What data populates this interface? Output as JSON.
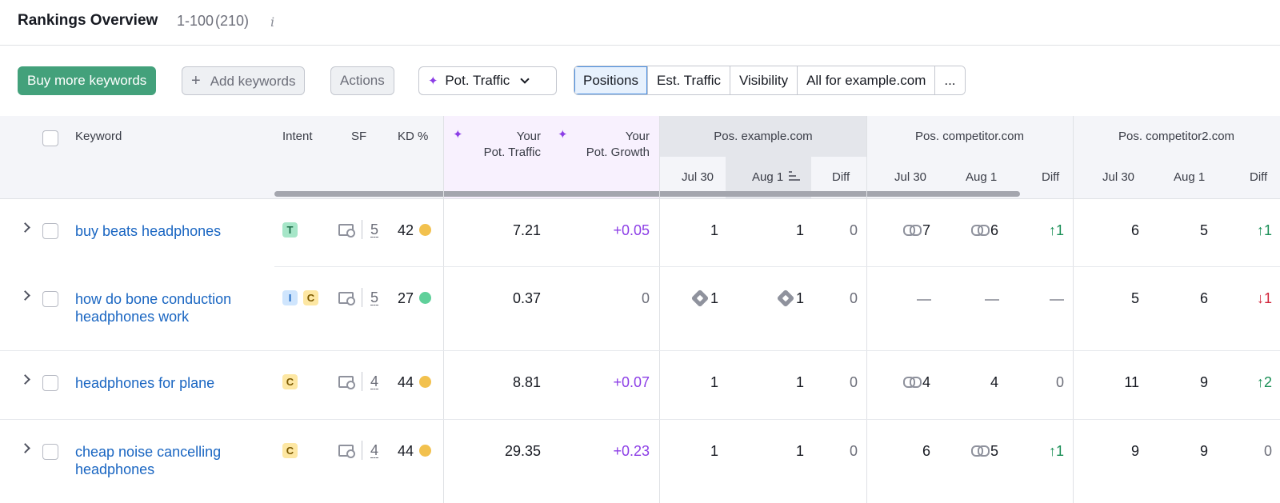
{
  "header": {
    "title": "Rankings Overview",
    "range": "1-100",
    "total": "(210)",
    "info_glyph": "i"
  },
  "toolbar": {
    "buy_label": "Buy more keywords",
    "add_label": "Add keywords",
    "add_glyph": "+",
    "actions_label": "Actions",
    "pot_label": "Pot. Traffic",
    "segments": [
      "Positions",
      "Est. Traffic",
      "Visibility",
      "All for example.com",
      "..."
    ],
    "active_segment": "Positions"
  },
  "table": {
    "columns": {
      "keyword": "Keyword",
      "intent": "Intent",
      "sf": "SF",
      "kd": "KD %",
      "pot_traffic_1": "Your",
      "pot_traffic_2": "Pot. Traffic",
      "pot_growth_1": "Your",
      "pot_growth_2": "Pot. Growth",
      "group_example": "Pos. example.com",
      "group_comp1": "Pos. competitor.com",
      "group_comp2": "Pos. competitor2.com",
      "jul": "Jul 30",
      "aug": "Aug 1",
      "diff": "Diff"
    },
    "rows": [
      {
        "keyword": [
          "buy beats headphones"
        ],
        "intents": [
          "T"
        ],
        "sf": "5",
        "kd": "42",
        "kd_color": "#f2c14e",
        "pot_traffic": "7.21",
        "pot_growth": "+0.05",
        "ex_jul": "1",
        "ex_aug": "1",
        "ex_diff": "0",
        "c1_jul": "7",
        "c1_aug": "6",
        "c1_diff": "↑1",
        "c2_jul": "6",
        "c2_aug": "5",
        "c2_diff": "↑1"
      },
      {
        "keyword": [
          "how do bone conduction",
          "headphones work"
        ],
        "intents": [
          "I",
          "C"
        ],
        "sf": "5",
        "kd": "27",
        "kd_color": "#5fd09a",
        "pot_traffic": "0.37",
        "pot_growth": "0",
        "ex_jul": "1",
        "ex_aug": "1",
        "ex_diff": "0",
        "c1_jul": "",
        "c1_aug": "",
        "c1_diff": "",
        "c2_jul": "5",
        "c2_aug": "6",
        "c2_diff": "↓1"
      },
      {
        "keyword": [
          "headphones for plane"
        ],
        "intents": [
          "C"
        ],
        "sf": "4",
        "kd": "44",
        "kd_color": "#f2c14e",
        "pot_traffic": "8.81",
        "pot_growth": "+0.07",
        "ex_jul": "1",
        "ex_aug": "1",
        "ex_diff": "0",
        "c1_jul": "4",
        "c1_aug": "4",
        "c1_diff": "0",
        "c2_jul": "11",
        "c2_aug": "9",
        "c2_diff": "↑2"
      },
      {
        "keyword": [
          "cheap noise cancelling",
          "headphones"
        ],
        "intents": [
          "C"
        ],
        "sf": "4",
        "kd": "44",
        "kd_color": "#f2c14e",
        "pot_traffic": "29.35",
        "pot_growth": "+0.23",
        "ex_jul": "1",
        "ex_aug": "1",
        "ex_diff": "0",
        "c1_jul": "6",
        "c1_aug": "5",
        "c1_diff": "↑1",
        "c2_jul": "9",
        "c2_aug": "9",
        "c2_diff": "0"
      }
    ]
  }
}
